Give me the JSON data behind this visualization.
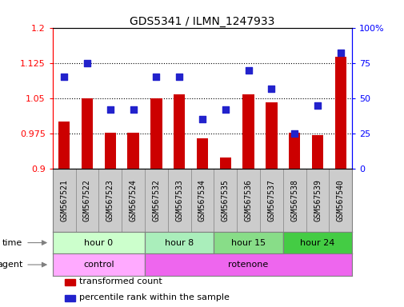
{
  "title": "GDS5341 / ILMN_1247933",
  "samples": [
    "GSM567521",
    "GSM567522",
    "GSM567523",
    "GSM567524",
    "GSM567532",
    "GSM567533",
    "GSM567534",
    "GSM567535",
    "GSM567536",
    "GSM567537",
    "GSM567538",
    "GSM567539",
    "GSM567540"
  ],
  "red_values": [
    1.0,
    1.05,
    0.977,
    0.977,
    1.05,
    1.058,
    0.965,
    0.925,
    1.058,
    1.042,
    0.977,
    0.972,
    1.138
  ],
  "blue_values": [
    65,
    75,
    42,
    42,
    65,
    65,
    35,
    42,
    70,
    57,
    25,
    45,
    82
  ],
  "ylim_left": [
    0.9,
    1.2
  ],
  "ylim_right": [
    0,
    100
  ],
  "yticks_left": [
    0.9,
    0.975,
    1.05,
    1.125,
    1.2
  ],
  "ytick_labels_left": [
    "0.9",
    "0.975",
    "1.05",
    "1.125",
    "1.2"
  ],
  "yticks_right": [
    0,
    25,
    50,
    75,
    100
  ],
  "ytick_labels_right": [
    "0",
    "25",
    "50",
    "75",
    "100%"
  ],
  "grid_values": [
    0.975,
    1.05,
    1.125
  ],
  "time_groups": [
    {
      "label": "hour 0",
      "start": 0,
      "end": 4,
      "color": "#ccffcc"
    },
    {
      "label": "hour 8",
      "start": 4,
      "end": 7,
      "color": "#aaeebb"
    },
    {
      "label": "hour 15",
      "start": 7,
      "end": 10,
      "color": "#88dd88"
    },
    {
      "label": "hour 24",
      "start": 10,
      "end": 13,
      "color": "#44cc44"
    }
  ],
  "agent_groups": [
    {
      "label": "control",
      "start": 0,
      "end": 4,
      "color": "#ffaaff"
    },
    {
      "label": "rotenone",
      "start": 4,
      "end": 13,
      "color": "#ee66ee"
    }
  ],
  "bar_color": "#cc0000",
  "dot_color": "#2222cc",
  "dot_size": 30,
  "bar_width": 0.5,
  "legend_items": [
    {
      "color": "#cc0000",
      "label": "transformed count"
    },
    {
      "color": "#2222cc",
      "label": "percentile rank within the sample"
    }
  ],
  "xlabel_bg": "#cccccc",
  "xlabel_box_height": 0.28
}
